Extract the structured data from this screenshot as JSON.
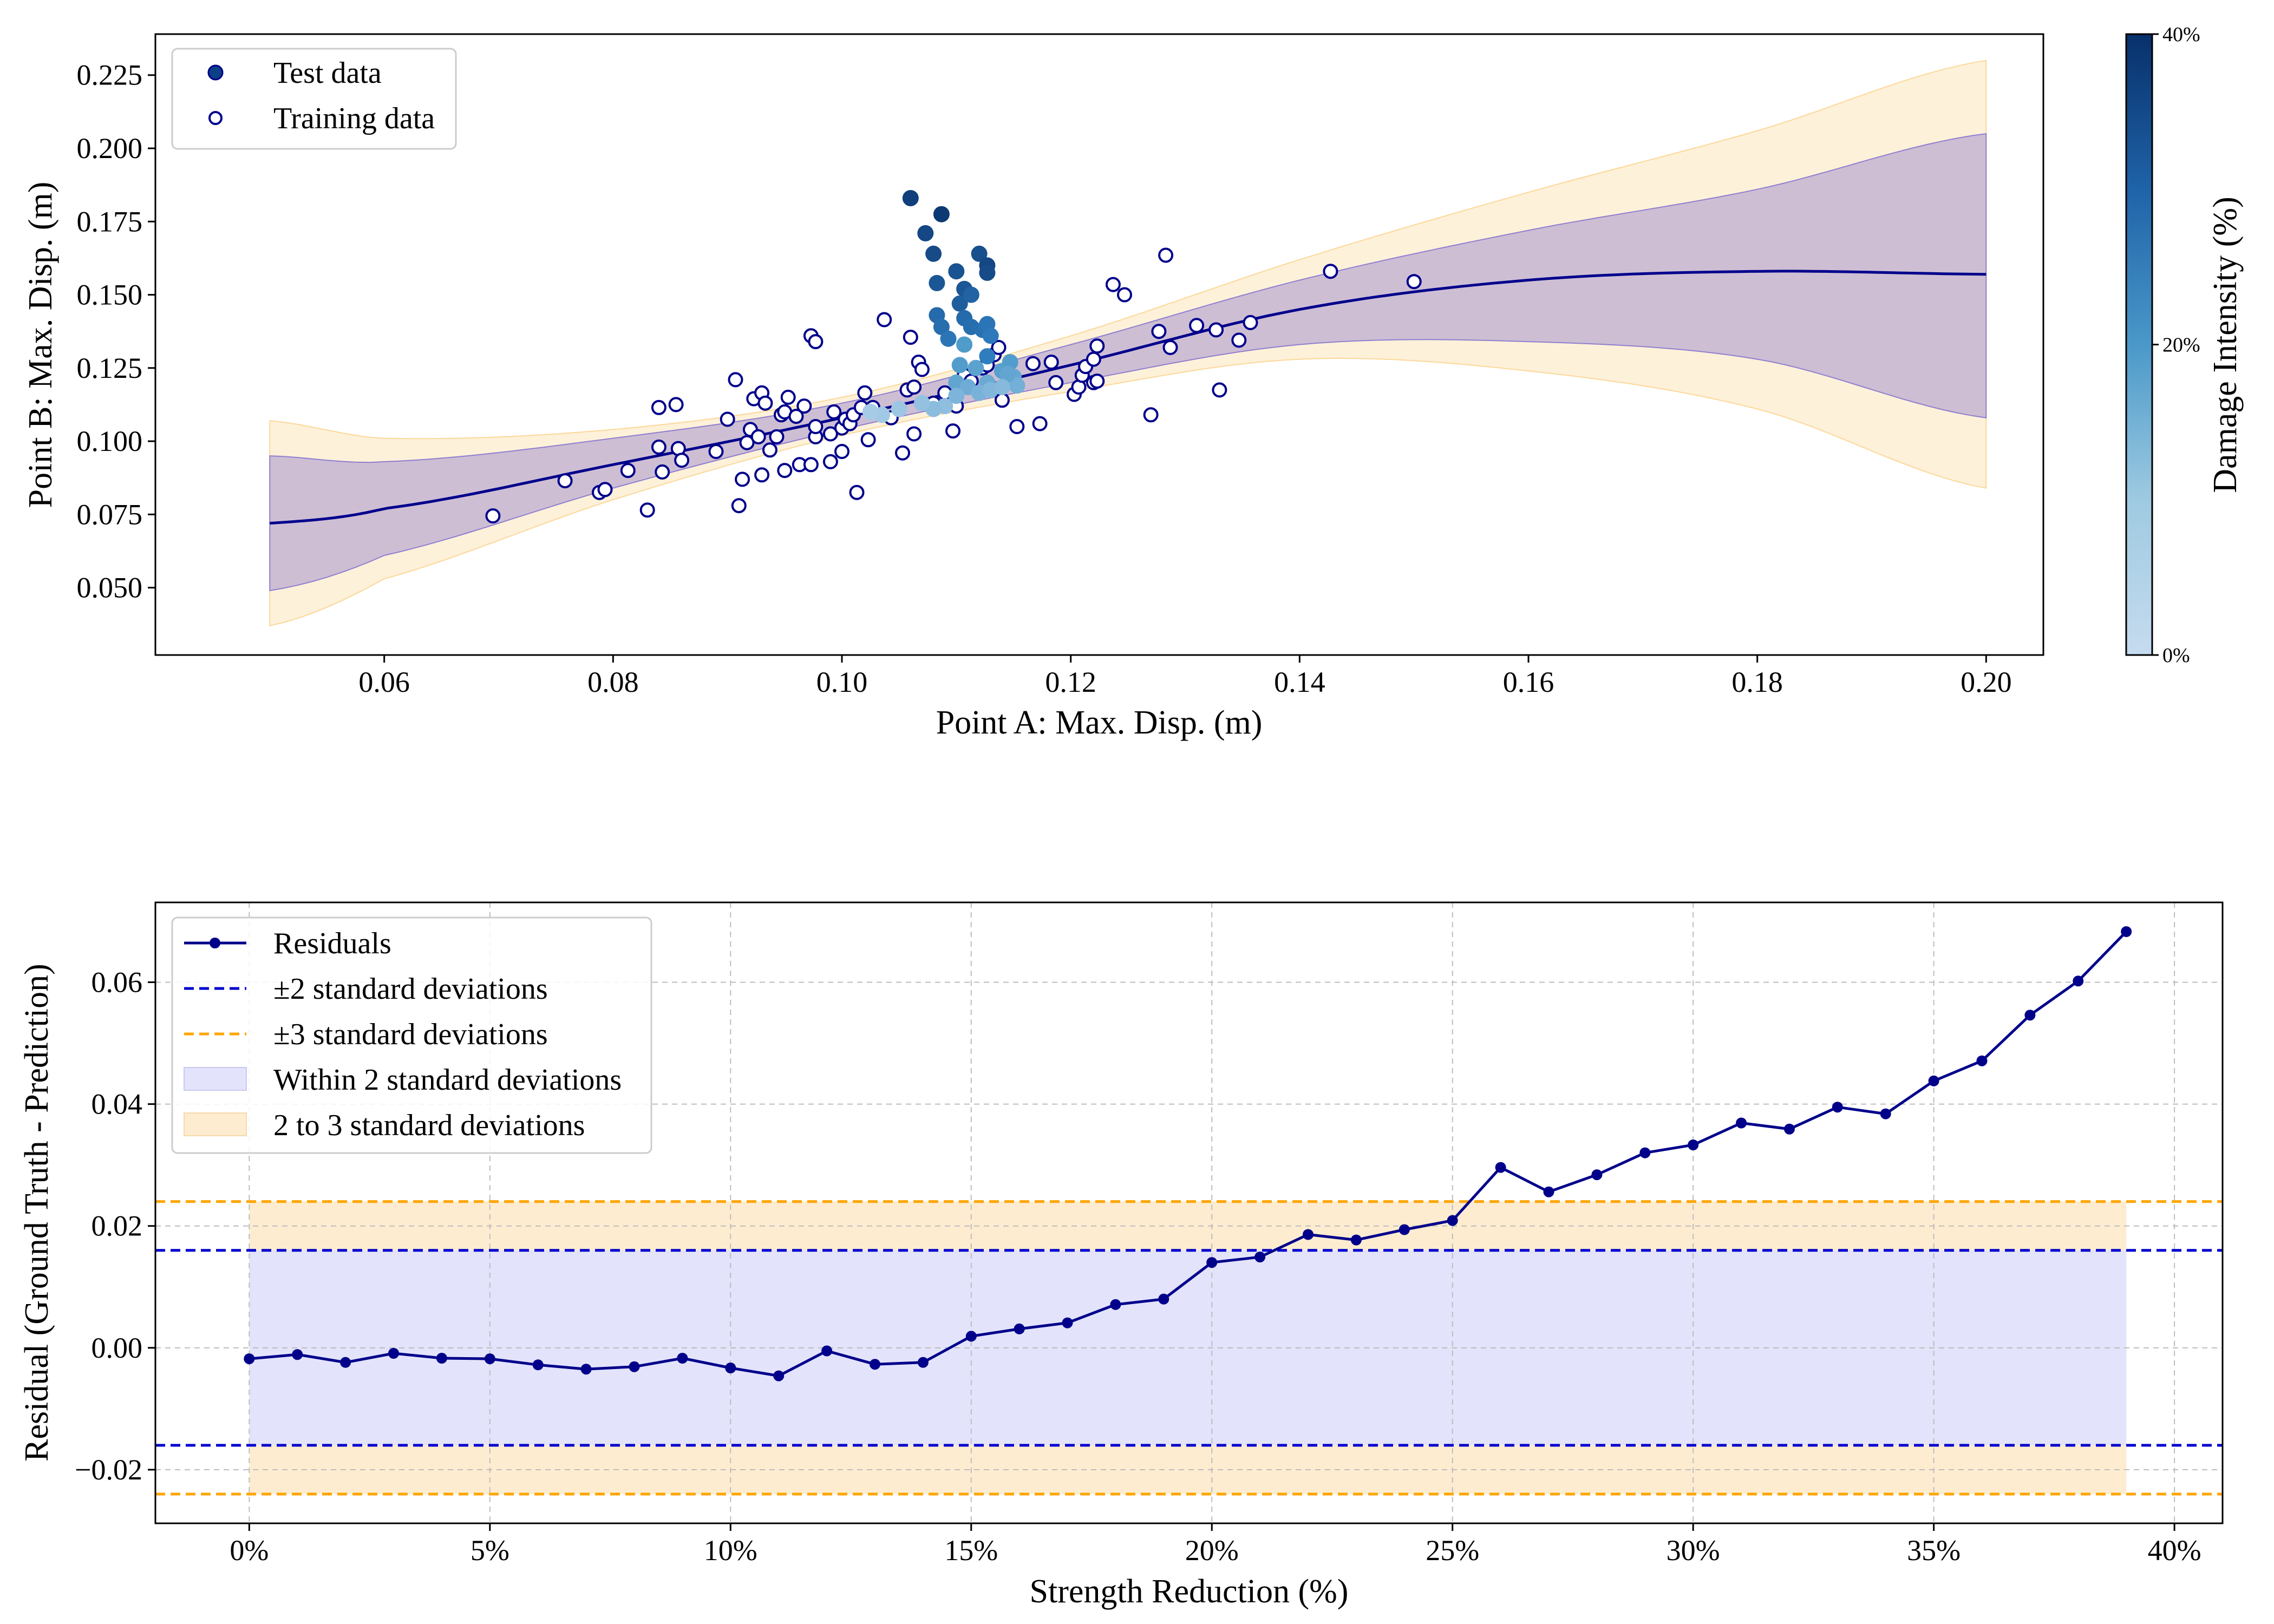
{
  "chart_data": [
    {
      "type": "scatter",
      "xlabel": "Point A: Max. Disp. (m)",
      "ylabel": "Point B: Max. Disp. (m)",
      "xlim": [
        0.04,
        0.205
      ],
      "ylim": [
        0.027,
        0.239
      ],
      "xticks": [
        0.06,
        0.08,
        0.1,
        0.12,
        0.14,
        0.16,
        0.18,
        0.2
      ],
      "xtick_labels": [
        "0.06",
        "0.08",
        "0.10",
        "0.12",
        "0.14",
        "0.16",
        "0.18",
        "0.20"
      ],
      "yticks": [
        0.05,
        0.075,
        0.1,
        0.125,
        0.15,
        0.175,
        0.2,
        0.225
      ],
      "ytick_labels": [
        "0.050",
        "0.075",
        "0.100",
        "0.125",
        "0.150",
        "0.175",
        "0.200",
        "0.225"
      ],
      "grid": false,
      "legend_position": "top-left",
      "legend": [
        {
          "label": "Test data",
          "marker": "filled-circle",
          "color": "#0b3f86"
        },
        {
          "label": "Training data",
          "marker": "open-circle",
          "color": "#00008b"
        }
      ],
      "colorbar": {
        "label": "Damage Intensity (%)",
        "min": 0,
        "max": 40,
        "ticks": [
          0,
          20,
          40
        ],
        "tick_labels": [
          "0%",
          "20%",
          "40%"
        ],
        "colormap": "Blues",
        "color_low": "#c6dbef",
        "color_high": "#08306b"
      },
      "fit_curve": {
        "color": "#00008b",
        "x": [
          0.05,
          0.06,
          0.08,
          0.1,
          0.12,
          0.14,
          0.16,
          0.18,
          0.2
        ],
        "mean": [
          0.072,
          0.077,
          0.092,
          0.108,
          0.126,
          0.145,
          0.155,
          0.158,
          0.157
        ],
        "band_2sd_lower": [
          0.049,
          0.061,
          0.084,
          0.104,
          0.12,
          0.133,
          0.134,
          0.128,
          0.108
        ],
        "band_2sd_upper": [
          0.095,
          0.093,
          0.101,
          0.113,
          0.133,
          0.155,
          0.172,
          0.186,
          0.205
        ],
        "band_3sd_lower": [
          0.037,
          0.053,
          0.08,
          0.102,
          0.117,
          0.128,
          0.124,
          0.111,
          0.084
        ],
        "band_3sd_upper": [
          0.107,
          0.101,
          0.104,
          0.115,
          0.136,
          0.162,
          0.185,
          0.206,
          0.23
        ],
        "band_2sd_color": "#9c8ccf",
        "band_3sd_color": "#fde9c4"
      },
      "training_points": [
        [
          0.0695,
          0.0745
        ],
        [
          0.0758,
          0.0865
        ],
        [
          0.0788,
          0.0825
        ],
        [
          0.0793,
          0.0835
        ],
        [
          0.083,
          0.0765
        ],
        [
          0.084,
          0.1115
        ],
        [
          0.084,
          0.098
        ],
        [
          0.0843,
          0.0895
        ],
        [
          0.0813,
          0.09
        ],
        [
          0.0855,
          0.1125
        ],
        [
          0.0857,
          0.0975
        ],
        [
          0.086,
          0.0935
        ],
        [
          0.089,
          0.0965
        ],
        [
          0.09,
          0.1075
        ],
        [
          0.0907,
          0.121
        ],
        [
          0.091,
          0.078
        ],
        [
          0.0913,
          0.087
        ],
        [
          0.0917,
          0.0995
        ],
        [
          0.092,
          0.104
        ],
        [
          0.0923,
          0.1145
        ],
        [
          0.0927,
          0.1015
        ],
        [
          0.093,
          0.1165
        ],
        [
          0.093,
          0.0885
        ],
        [
          0.0933,
          0.113
        ],
        [
          0.0937,
          0.097
        ],
        [
          0.0943,
          0.1015
        ],
        [
          0.0947,
          0.109
        ],
        [
          0.095,
          0.11
        ],
        [
          0.095,
          0.09
        ],
        [
          0.0953,
          0.115
        ],
        [
          0.096,
          0.1085
        ],
        [
          0.0963,
          0.092
        ],
        [
          0.0967,
          0.112
        ],
        [
          0.0973,
          0.092
        ],
        [
          0.0973,
          0.136
        ],
        [
          0.0977,
          0.134
        ],
        [
          0.0977,
          0.1015
        ],
        [
          0.0977,
          0.105
        ],
        [
          0.099,
          0.1025
        ],
        [
          0.099,
          0.093
        ],
        [
          0.0993,
          0.11
        ],
        [
          0.1,
          0.0965
        ],
        [
          0.1,
          0.1045
        ],
        [
          0.1003,
          0.1075
        ],
        [
          0.1007,
          0.106
        ],
        [
          0.101,
          0.109
        ],
        [
          0.1013,
          0.0825
        ],
        [
          0.1017,
          0.1115
        ],
        [
          0.102,
          0.1165
        ],
        [
          0.1023,
          0.1005
        ],
        [
          0.1027,
          0.1115
        ],
        [
          0.1037,
          0.1415
        ],
        [
          0.1043,
          0.108
        ],
        [
          0.1053,
          0.096
        ],
        [
          0.1057,
          0.1175
        ],
        [
          0.106,
          0.1355
        ],
        [
          0.1063,
          0.1025
        ],
        [
          0.1063,
          0.1185
        ],
        [
          0.1067,
          0.127
        ],
        [
          0.107,
          0.1245
        ],
        [
          0.108,
          0.113
        ],
        [
          0.109,
          0.1165
        ],
        [
          0.1097,
          0.1035
        ],
        [
          0.11,
          0.112
        ],
        [
          0.1107,
          0.1225
        ],
        [
          0.1113,
          0.1205
        ],
        [
          0.1123,
          0.125
        ],
        [
          0.1127,
          0.126
        ],
        [
          0.1133,
          0.1295
        ],
        [
          0.1137,
          0.132
        ],
        [
          0.114,
          0.114
        ],
        [
          0.1147,
          0.121
        ],
        [
          0.1153,
          0.105
        ],
        [
          0.1167,
          0.1265
        ],
        [
          0.1173,
          0.106
        ],
        [
          0.1183,
          0.127
        ],
        [
          0.1187,
          0.12
        ],
        [
          0.1203,
          0.116
        ],
        [
          0.1207,
          0.1185
        ],
        [
          0.121,
          0.1225
        ],
        [
          0.1213,
          0.1255
        ],
        [
          0.122,
          0.128
        ],
        [
          0.122,
          0.12
        ],
        [
          0.1223,
          0.1205
        ],
        [
          0.1223,
          0.1325
        ],
        [
          0.1237,
          0.1535
        ],
        [
          0.1247,
          0.15
        ],
        [
          0.127,
          0.109
        ],
        [
          0.1277,
          0.1375
        ],
        [
          0.1283,
          0.1635
        ],
        [
          0.1287,
          0.132
        ],
        [
          0.131,
          0.1395
        ],
        [
          0.1327,
          0.138
        ],
        [
          0.133,
          0.1175
        ],
        [
          0.1347,
          0.1345
        ],
        [
          0.1357,
          0.1405
        ],
        [
          0.1427,
          0.158
        ],
        [
          0.15,
          0.1545
        ]
      ],
      "test_points": [
        [
          0.106,
          0.183,
          36
        ],
        [
          0.1073,
          0.171,
          34
        ],
        [
          0.108,
          0.164,
          33
        ],
        [
          0.1087,
          0.1775,
          38
        ],
        [
          0.1083,
          0.154,
          30
        ],
        [
          0.11,
          0.158,
          31
        ],
        [
          0.1107,
          0.152,
          30
        ],
        [
          0.1103,
          0.147,
          28
        ],
        [
          0.1113,
          0.15,
          27
        ],
        [
          0.112,
          0.164,
          32
        ],
        [
          0.1127,
          0.16,
          34
        ],
        [
          0.1127,
          0.1575,
          33
        ],
        [
          0.1083,
          0.143,
          25
        ],
        [
          0.1087,
          0.139,
          24
        ],
        [
          0.1093,
          0.135,
          22
        ],
        [
          0.1107,
          0.142,
          25
        ],
        [
          0.1113,
          0.139,
          24
        ],
        [
          0.1123,
          0.138,
          23
        ],
        [
          0.1127,
          0.14,
          22
        ],
        [
          0.113,
          0.136,
          21
        ],
        [
          0.1127,
          0.129,
          20
        ],
        [
          0.1107,
          0.133,
          19
        ],
        [
          0.1103,
          0.126,
          18
        ],
        [
          0.11,
          0.12,
          15
        ],
        [
          0.111,
          0.1185,
          12
        ],
        [
          0.1117,
          0.125,
          16
        ],
        [
          0.1127,
          0.12,
          13
        ],
        [
          0.114,
          0.124,
          17
        ],
        [
          0.1147,
          0.127,
          18
        ],
        [
          0.115,
          0.122,
          14
        ],
        [
          0.1153,
          0.119,
          11
        ],
        [
          0.1145,
          0.123,
          15
        ],
        [
          0.109,
          0.112,
          5
        ],
        [
          0.108,
          0.111,
          6
        ],
        [
          0.107,
          0.113,
          4
        ],
        [
          0.105,
          0.111,
          2
        ],
        [
          0.1035,
          0.109,
          1
        ],
        [
          0.1025,
          0.11,
          0
        ],
        [
          0.11,
          0.1155,
          9
        ],
        [
          0.112,
          0.1165,
          10
        ],
        [
          0.113,
          0.1175,
          8
        ],
        [
          0.114,
          0.1185,
          7
        ]
      ]
    },
    {
      "type": "line",
      "xlabel": "Strength Reduction (%)",
      "ylabel": "Residual (Ground Truth - Prediction)",
      "xlim": [
        -1.95,
        41.0
      ],
      "ylim": [
        -0.0288,
        0.0731
      ],
      "xticks": [
        0,
        5,
        10,
        15,
        20,
        25,
        30,
        35,
        40
      ],
      "xtick_labels": [
        "0%",
        "5%",
        "10%",
        "15%",
        "20%",
        "25%",
        "30%",
        "35%",
        "40%"
      ],
      "yticks": [
        -0.02,
        0.0,
        0.02,
        0.04,
        0.06
      ],
      "ytick_labels": [
        "−0.02",
        "0.00",
        "0.02",
        "0.04",
        "0.06"
      ],
      "grid": true,
      "legend_position": "top-left",
      "legend": [
        {
          "label": "Residuals",
          "kind": "line-marker",
          "color": "#00008b"
        },
        {
          "label": "±2 standard deviations",
          "kind": "dashed",
          "color": "#0000cd"
        },
        {
          "label": "±3 standard deviations",
          "kind": "dashed",
          "color": "#ffa500"
        },
        {
          "label": "Within 2 standard deviations",
          "kind": "patch",
          "color": "#e3e3fb"
        },
        {
          "label": "2 to 3 standard deviations",
          "kind": "patch",
          "color": "#fdecd0"
        }
      ],
      "sd2": 0.016,
      "sd3": 0.024,
      "band_x_range": [
        0,
        39
      ],
      "x": [
        0,
        1,
        2,
        3,
        4,
        5,
        6,
        7,
        8,
        9,
        10,
        11,
        12,
        13,
        14,
        15,
        16,
        17,
        18,
        19,
        20,
        21,
        22,
        23,
        24,
        25,
        26,
        27,
        28,
        29,
        30,
        31,
        32,
        33,
        34,
        35,
        36,
        37,
        38,
        39
      ],
      "series": [
        {
          "name": "Residuals",
          "color": "#00008b",
          "values": [
            -0.0018,
            -0.0011,
            -0.0024,
            -0.0009,
            -0.0017,
            -0.0018,
            -0.0028,
            -0.0035,
            -0.0031,
            -0.0017,
            -0.0033,
            -0.0046,
            -0.0005,
            -0.0027,
            -0.0024,
            0.0019,
            0.0031,
            0.0041,
            0.0071,
            0.008,
            0.014,
            0.0149,
            0.0186,
            0.0177,
            0.0194,
            0.0209,
            0.0296,
            0.0256,
            0.0284,
            0.032,
            0.0333,
            0.0369,
            0.0359,
            0.0395,
            0.0384,
            0.0438,
            0.0471,
            0.0546,
            0.0602,
            0.0683
          ]
        }
      ]
    }
  ]
}
